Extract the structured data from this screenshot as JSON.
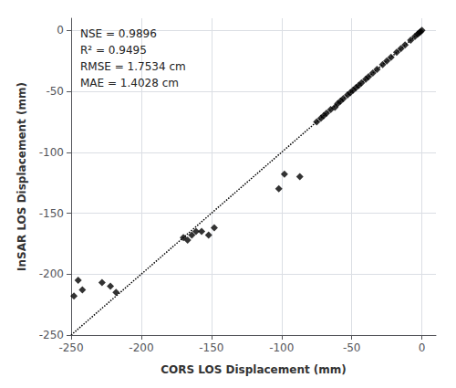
{
  "chart_data": {
    "type": "scatter",
    "xlabel": "CORS LOS Displacement (mm)",
    "ylabel": "InSAR LOS Displacement (mm)",
    "annotation": "NSE = 0.9896\nR² = 0.9495\nRMSE = 1.7534 cm\nMAE = 1.4028 cm",
    "xlim": [
      -250,
      10
    ],
    "ylim": [
      -250,
      10
    ],
    "xticks": [
      -250,
      -200,
      -150,
      -100,
      -50,
      0
    ],
    "yticks": [
      -250,
      -200,
      -150,
      -100,
      -50,
      0
    ],
    "grid": true,
    "series": [
      {
        "type": "line",
        "color": "black",
        "line_style": "dotted",
        "x": [
          -250,
          0
        ],
        "values": [
          -250,
          0
        ]
      },
      {
        "type": "scatter",
        "color": "black",
        "marker": "diamond",
        "x": [
          -248,
          -245,
          -242,
          -228,
          -222,
          -218,
          -170,
          -167,
          -164,
          -161,
          -157,
          -152,
          -148,
          -102,
          -98,
          -87,
          -75,
          -72,
          -70,
          -68,
          -65,
          -62,
          -60,
          -58,
          -56,
          -53,
          -51,
          -49,
          -47,
          -45,
          -43,
          -40,
          -38,
          -35,
          -32,
          -28,
          -25,
          -22,
          -18,
          -15,
          -12,
          -8,
          -5,
          -3,
          -2,
          -1,
          0
        ],
        "values": [
          -218,
          -205,
          -213,
          -207,
          -210,
          -215,
          -170,
          -172,
          -168,
          -165,
          -165,
          -168,
          -162,
          -130,
          -118,
          -120,
          -75,
          -72,
          -70,
          -68,
          -65,
          -63,
          -60,
          -58,
          -56,
          -53,
          -51,
          -49,
          -47,
          -45,
          -43,
          -40,
          -38,
          -35,
          -32,
          -28,
          -25,
          -22,
          -18,
          -15,
          -12,
          -8,
          -5,
          -3,
          -2,
          -1,
          0
        ]
      }
    ]
  }
}
